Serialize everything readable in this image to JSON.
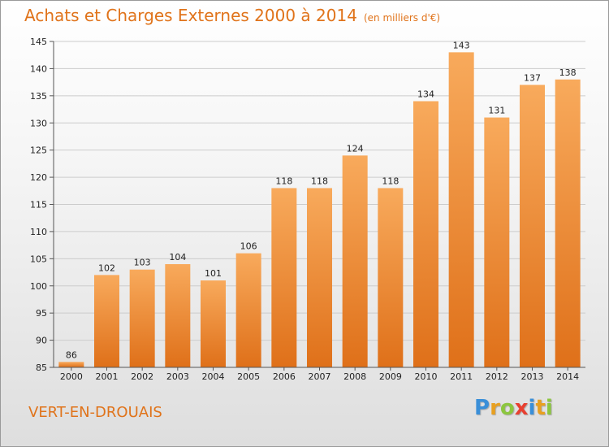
{
  "chart_data": {
    "type": "bar",
    "title": "Achats et Charges Externes 2000 à 2014",
    "subtitle": "(en milliers d'€)",
    "categories": [
      "2000",
      "2001",
      "2002",
      "2003",
      "2004",
      "2005",
      "2006",
      "2007",
      "2008",
      "2009",
      "2010",
      "2011",
      "2012",
      "2013",
      "2014"
    ],
    "values": [
      86,
      102,
      103,
      104,
      101,
      106,
      118,
      118,
      124,
      118,
      134,
      143,
      131,
      137,
      138
    ],
    "ylim": [
      85,
      145
    ],
    "yticks": [
      85,
      90,
      95,
      100,
      105,
      110,
      115,
      120,
      125,
      130,
      135,
      140,
      145
    ],
    "xlabel": "",
    "ylabel": "",
    "grid": "horizontal",
    "data_labels": true,
    "colors": {
      "bar_light": "#f8a95a",
      "bar_dark": "#e0741e",
      "grid": "#cccccc",
      "title": "#e0731a"
    }
  },
  "commune": "VERT-EN-DROUAIS",
  "logo": {
    "letters": [
      "P",
      "r",
      "o",
      "x",
      "i",
      "t",
      "i"
    ],
    "colors": [
      "#3a8fd8",
      "#e8a020",
      "#8cc63f",
      "#e84030",
      "#3a8fd8",
      "#e8a020",
      "#8cc63f"
    ]
  }
}
